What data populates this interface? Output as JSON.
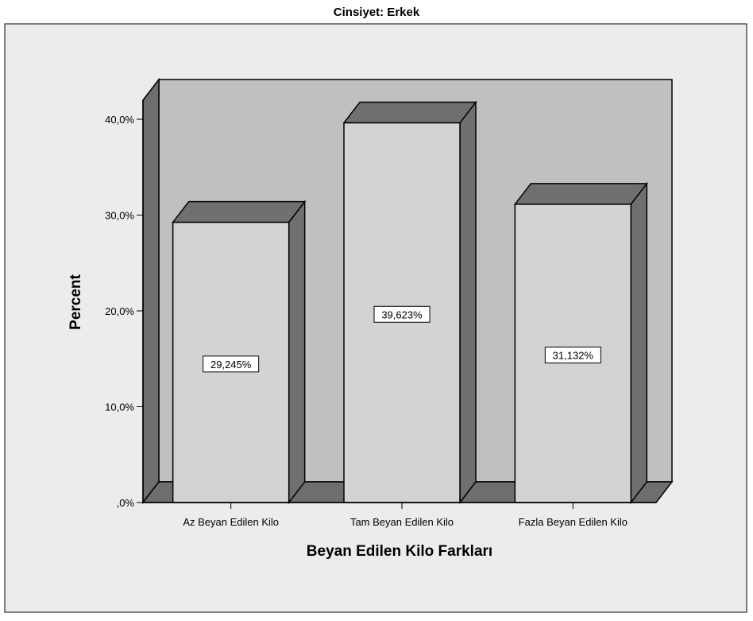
{
  "chart_data": {
    "type": "bar",
    "title": "Cinsiyet: Erkek",
    "xlabel": "Beyan Edilen Kilo Farkları",
    "ylabel": "Percent",
    "categories": [
      "Az Beyan Edilen Kilo",
      "Tam Beyan Edilen Kilo",
      "Fazla Beyan Edilen Kilo"
    ],
    "values": [
      29.245,
      39.623,
      31.132
    ],
    "data_labels": [
      "29,245%",
      "39,623%",
      "31,132%"
    ],
    "ylim": [
      0,
      40
    ],
    "yticks": [
      0,
      10,
      20,
      30,
      40
    ],
    "ytick_labels": [
      ",0%",
      "10,0%",
      "20,0%",
      "30,0%",
      "40,0%"
    ],
    "style": "3d",
    "colors": {
      "bar_face": "#d3d3d3",
      "bar_side": "#707070",
      "back_wall": "#c0c0c0",
      "floor": "#6e6e6e",
      "outer_frame_bg": "#ececec"
    }
  }
}
